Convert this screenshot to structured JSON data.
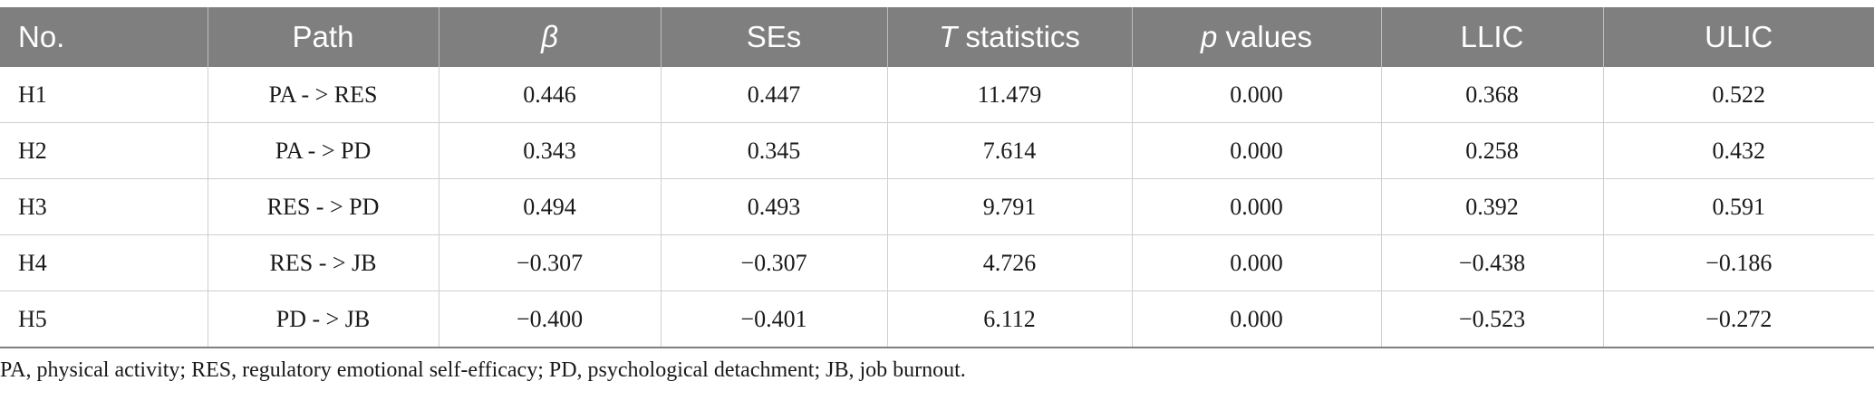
{
  "table": {
    "headers": [
      {
        "pre": "No.",
        "em": "",
        "post": ""
      },
      {
        "pre": "Path",
        "em": "",
        "post": ""
      },
      {
        "pre": "",
        "em": "β",
        "post": ""
      },
      {
        "pre": "SEs",
        "em": "",
        "post": ""
      },
      {
        "pre": "",
        "em": "T",
        "post": " statistics"
      },
      {
        "pre": "",
        "em": "p",
        "post": " values"
      },
      {
        "pre": "LLIC",
        "em": "",
        "post": ""
      },
      {
        "pre": "ULIC",
        "em": "",
        "post": ""
      }
    ],
    "rows": [
      [
        "H1",
        "PA - > RES",
        "0.446",
        "0.447",
        "11.479",
        "0.000",
        "0.368",
        "0.522"
      ],
      [
        "H2",
        "PA - > PD",
        "0.343",
        "0.345",
        "7.614",
        "0.000",
        "0.258",
        "0.432"
      ],
      [
        "H3",
        "RES - > PD",
        "0.494",
        "0.493",
        "9.791",
        "0.000",
        "0.392",
        "0.591"
      ],
      [
        "H4",
        "RES - > JB",
        "−0.307",
        "−0.307",
        "4.726",
        "0.000",
        "−0.438",
        "−0.186"
      ],
      [
        "H5",
        "PD - > JB",
        "−0.400",
        "−0.401",
        "6.112",
        "0.000",
        "−0.523",
        "−0.272"
      ]
    ]
  },
  "footnote": "PA, physical activity; RES, regulatory emotional self-efficacy; PD, psychological detachment; JB, job burnout."
}
